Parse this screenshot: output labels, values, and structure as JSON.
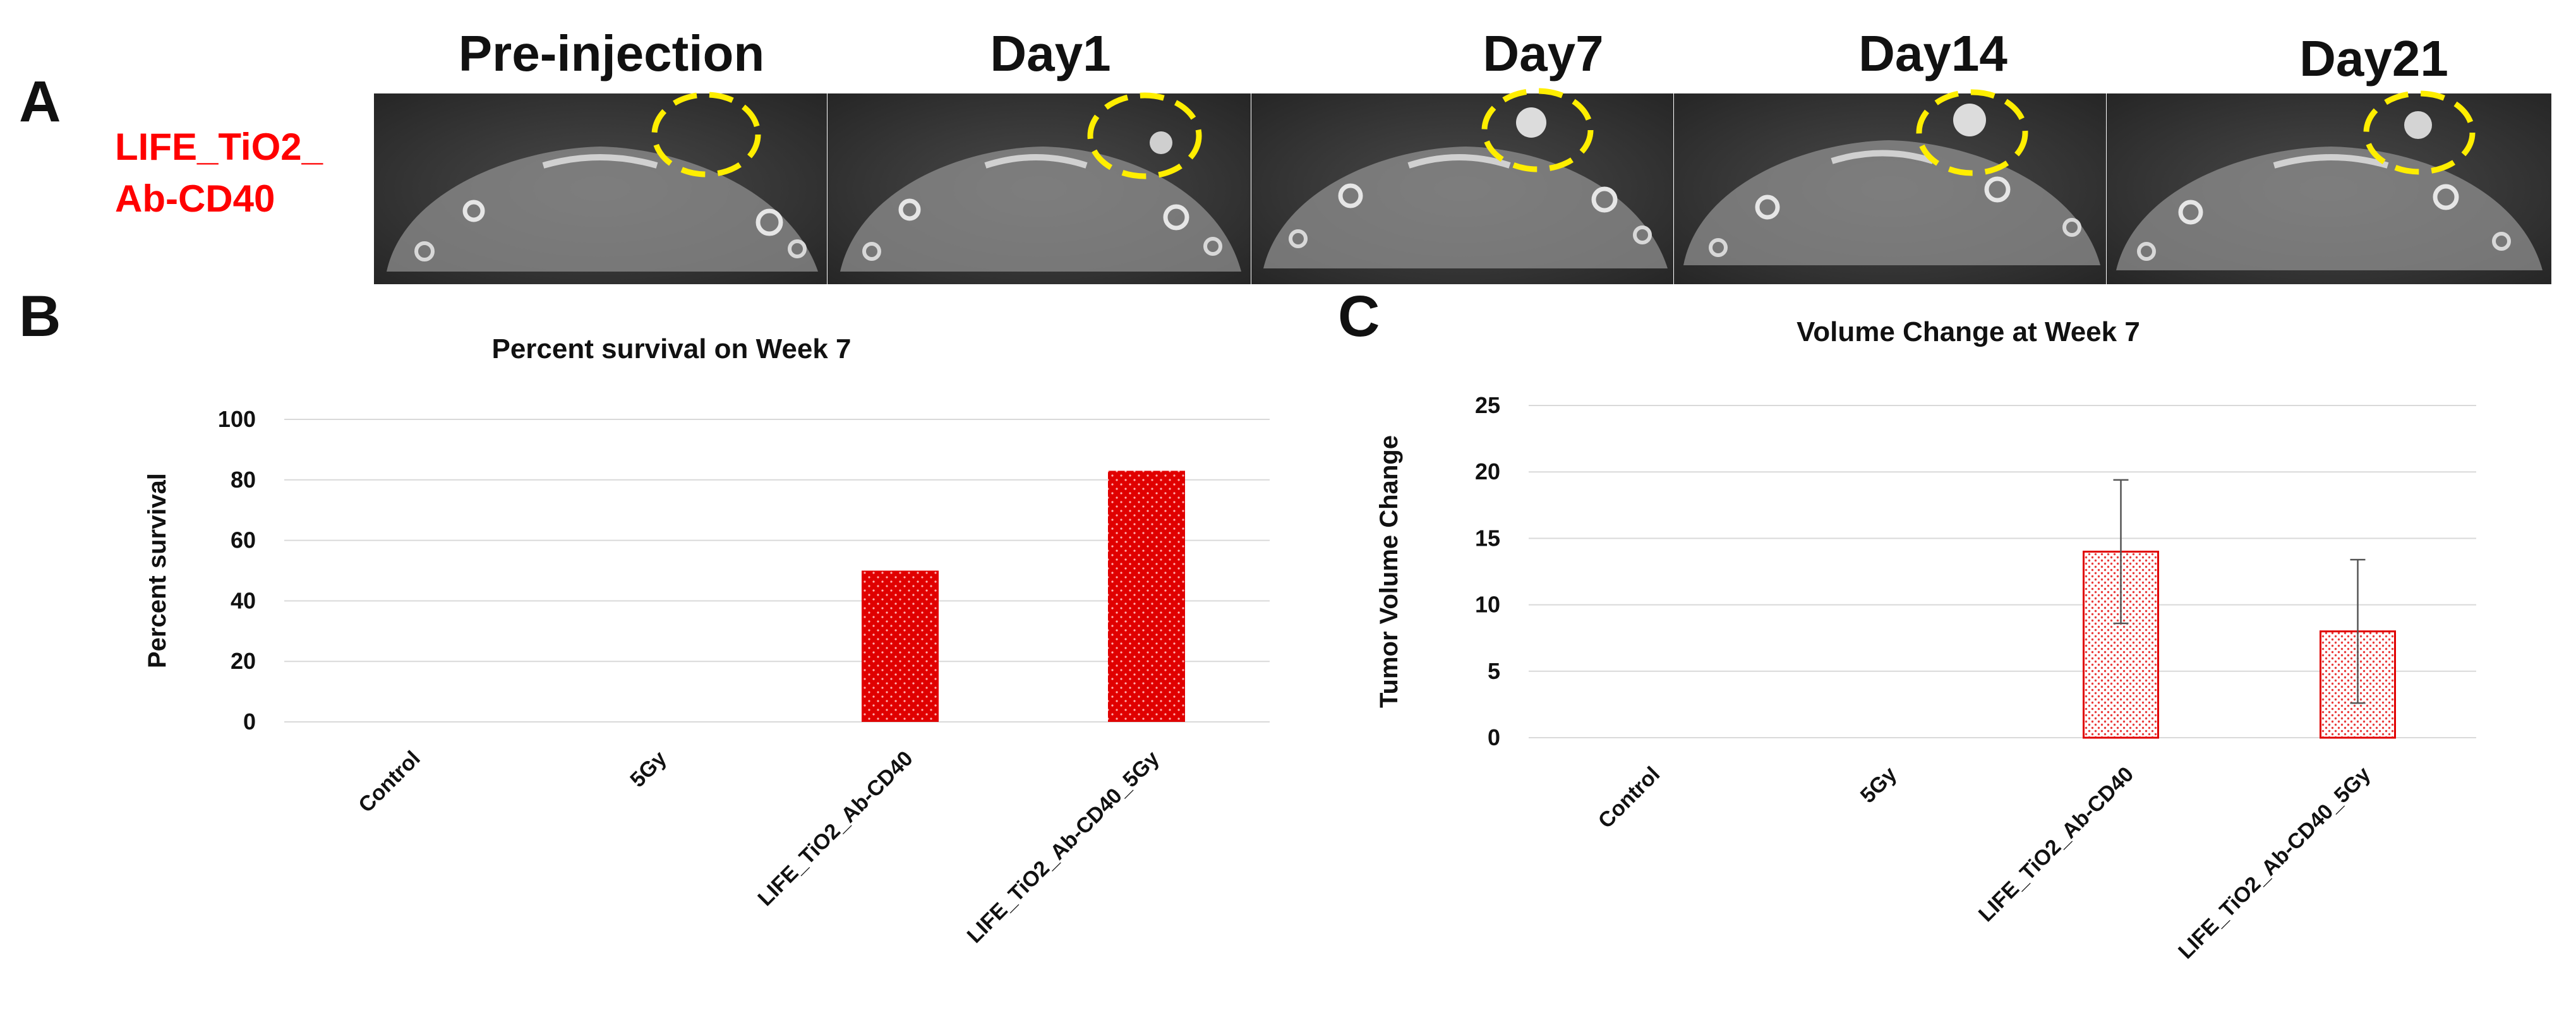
{
  "panel_letters": {
    "a": "A",
    "b": "B",
    "c": "C"
  },
  "panel_a": {
    "row_label_line1": "LIFE_TiO2_",
    "row_label_line2": "Ab-CD40",
    "timepoints": [
      "Pre-injection",
      "Day1",
      "Day7",
      "Day14",
      "Day21"
    ],
    "highlight_color": "#ffee00",
    "label_color": "#ff0000"
  },
  "chart_data": [
    {
      "type": "bar",
      "title": "Percent survival on Week 7",
      "xlabel": "",
      "ylabel": "Percent survival",
      "categories": [
        "Control",
        "5Gy",
        "LIFE_TiO2_Ab-CD40",
        "LIFE_TiO2_Ab-CD40_5Gy"
      ],
      "values": [
        0,
        0,
        50,
        83
      ],
      "ylim": [
        0,
        100
      ],
      "yticks": [
        0,
        20,
        40,
        60,
        80,
        100
      ],
      "grid": true,
      "bar_color": "#e00000",
      "fill_style": "solid-dotted"
    },
    {
      "type": "bar",
      "title": "Volume Change at Week 7",
      "xlabel": "",
      "ylabel": "Tumor Volume Change",
      "categories": [
        "Control",
        "5Gy",
        "LIFE_TiO2_Ab-CD40",
        "LIFE_TiO2_Ab-CD40_5Gy"
      ],
      "values": [
        0,
        0,
        14,
        8
      ],
      "error": [
        0,
        0,
        5.4,
        5.4
      ],
      "ylim": [
        0,
        25
      ],
      "yticks": [
        0,
        5,
        10,
        15,
        20,
        25
      ],
      "grid": true,
      "bar_color": "#e00000",
      "fill_style": "outline-stippled"
    }
  ]
}
